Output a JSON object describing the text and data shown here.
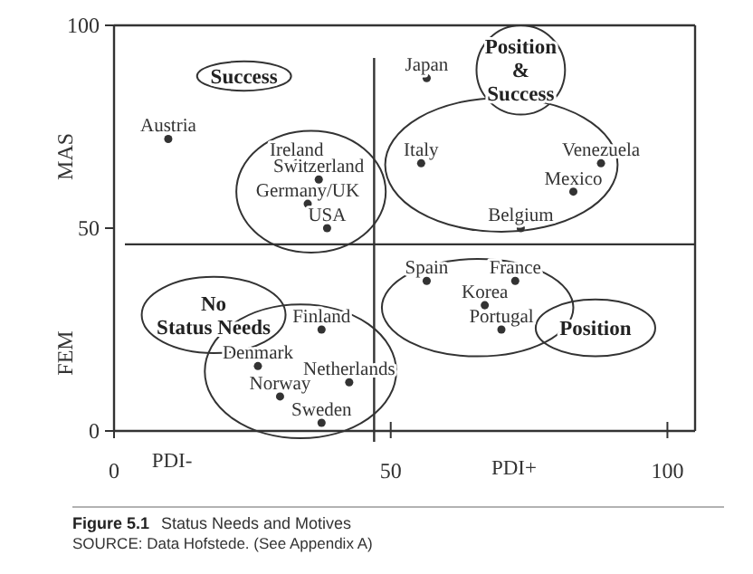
{
  "chart_data": {
    "type": "scatter",
    "title": "Figure 5.1",
    "subtitle": "Status Needs and Motives",
    "xlim": [
      0,
      105
    ],
    "ylim": [
      0,
      100
    ],
    "xticks": [
      0,
      50,
      100
    ],
    "yticks": [
      0,
      50,
      100
    ],
    "grid": false,
    "marker": "circle",
    "series": [
      {
        "color": "#333333",
        "x": [
          9.8,
          33,
          37,
          35,
          38.5,
          56.5,
          55.5,
          88,
          83,
          73.5,
          56.5,
          72.5,
          67,
          70,
          37.5,
          26,
          42.5,
          30,
          37.5
        ],
        "values": [
          72,
          66,
          62,
          56,
          50,
          87,
          66,
          66,
          59,
          50,
          37,
          37,
          31,
          25,
          25,
          16,
          12,
          8.5,
          2
        ],
        "value_labels": [
          "Austria",
          "Ireland",
          "Switzerland",
          "Germany/UK",
          "USA",
          "Japan",
          "Italy",
          "Venezuela",
          "Mexico",
          "Belgium",
          "Spain",
          "France",
          "Korea",
          "Portugal",
          "Finland",
          "Denmark",
          "Netherlands",
          "Norway",
          "Sweden"
        ]
      }
    ],
    "ref_lines": [
      {
        "axis": "x",
        "value": 47
      },
      {
        "axis": "y",
        "value": 46
      }
    ],
    "annotations": [
      "Success",
      "Position\n&\nSuccess",
      "No\nStatus Needs",
      "Position",
      "MAS",
      "FEM",
      "PDI-",
      "PDI+",
      "SOURCE: Data Hofstede. (See Appendix A)"
    ]
  }
}
